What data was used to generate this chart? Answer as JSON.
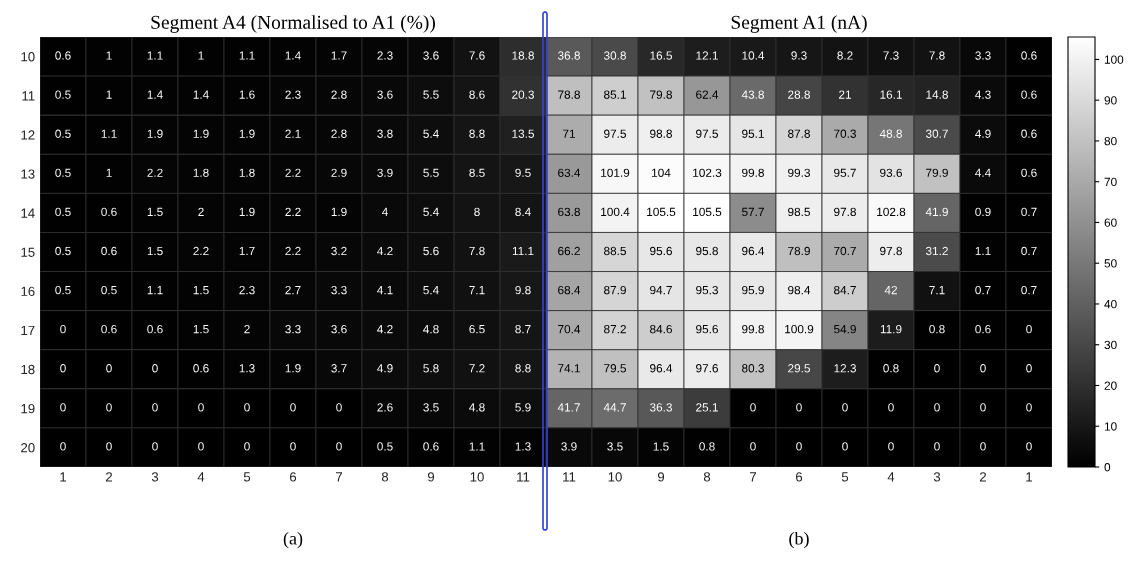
{
  "chart_data": [
    {
      "type": "heatmap",
      "title": "Segment A4 (Normalised to A1 (%))",
      "annotations": [
        "(a)"
      ],
      "categories": [
        "1",
        "2",
        "3",
        "4",
        "5",
        "6",
        "7",
        "8",
        "9",
        "10",
        "11"
      ],
      "y_categories": [
        "10",
        "11",
        "12",
        "13",
        "14",
        "15",
        "16",
        "17",
        "18",
        "19",
        "20"
      ],
      "cells": [
        [
          0.6,
          1,
          1.1,
          1,
          1.1,
          1.4,
          1.7,
          2.3,
          3.6,
          7.6,
          18.8
        ],
        [
          0.5,
          1,
          1.4,
          1.4,
          1.6,
          2.3,
          2.8,
          3.6,
          5.5,
          8.6,
          20.3
        ],
        [
          0.5,
          1.1,
          1.9,
          1.9,
          1.9,
          2.1,
          2.8,
          3.8,
          5.4,
          8.8,
          13.5
        ],
        [
          0.5,
          1,
          2.2,
          1.8,
          1.8,
          2.2,
          2.9,
          3.9,
          5.5,
          8.5,
          9.5
        ],
        [
          0.5,
          0.6,
          1.5,
          2,
          1.9,
          2.2,
          1.9,
          4,
          5.4,
          8,
          8.4
        ],
        [
          0.5,
          0.6,
          1.5,
          2.2,
          1.7,
          2.2,
          3.2,
          4.2,
          5.6,
          7.8,
          11.1
        ],
        [
          0.5,
          0.5,
          1.1,
          1.5,
          2.3,
          2.7,
          3.3,
          4.1,
          5.4,
          7.1,
          9.8
        ],
        [
          0,
          0.6,
          0.6,
          1.5,
          2,
          3.3,
          3.6,
          4.2,
          4.8,
          6.5,
          8.7
        ],
        [
          0,
          0,
          0,
          0.6,
          1.3,
          1.9,
          3.7,
          4.9,
          5.8,
          7.2,
          8.8
        ],
        [
          0,
          0,
          0,
          0,
          0,
          0,
          0,
          2.6,
          3.5,
          4.8,
          5.9
        ],
        [
          0,
          0,
          0,
          0,
          0,
          0,
          0,
          0.5,
          0.6,
          1.1,
          1.3
        ]
      ],
      "data_labels": true
    },
    {
      "type": "heatmap",
      "title": "Segment A1 (nA)",
      "annotations": [
        "(b)"
      ],
      "categories": [
        "11",
        "10",
        "9",
        "8",
        "7",
        "6",
        "5",
        "4",
        "3",
        "2",
        "1"
      ],
      "y_categories": [
        "10",
        "11",
        "12",
        "13",
        "14",
        "15",
        "16",
        "17",
        "18",
        "19",
        "20"
      ],
      "cells": [
        [
          36.8,
          30.8,
          16.5,
          12.1,
          10.4,
          9.3,
          8.2,
          7.3,
          7.8,
          3.3,
          0.6
        ],
        [
          78.8,
          85.1,
          79.8,
          62.4,
          43.8,
          28.8,
          21,
          16.1,
          14.8,
          4.3,
          0.6
        ],
        [
          71,
          97.5,
          98.8,
          97.5,
          95.1,
          87.8,
          70.3,
          48.8,
          30.7,
          4.9,
          0.6
        ],
        [
          63.4,
          101.9,
          104,
          102.3,
          99.8,
          99.3,
          95.7,
          93.6,
          79.9,
          4.4,
          0.6
        ],
        [
          63.8,
          100.4,
          105.5,
          105.5,
          57.7,
          98.5,
          97.8,
          102.8,
          41.9,
          0.9,
          0.7
        ],
        [
          66.2,
          88.5,
          95.6,
          95.8,
          96.4,
          78.9,
          70.7,
          97.8,
          31.2,
          1.1,
          0.7
        ],
        [
          68.4,
          87.9,
          94.7,
          95.3,
          95.9,
          98.4,
          84.7,
          42,
          7.1,
          0.7,
          0.7
        ],
        [
          70.4,
          87.2,
          84.6,
          95.6,
          99.8,
          100.9,
          54.9,
          11.9,
          0.8,
          0.6,
          0
        ],
        [
          74.1,
          79.5,
          96.4,
          97.6,
          80.3,
          29.5,
          12.3,
          0.8,
          0,
          0,
          0
        ],
        [
          41.7,
          44.7,
          36.3,
          25.1,
          0,
          0,
          0,
          0,
          0,
          0,
          0
        ],
        [
          3.9,
          3.5,
          1.5,
          0.8,
          0,
          0,
          0,
          0,
          0,
          0,
          0
        ]
      ],
      "clim": [
        0,
        105.5
      ],
      "cticks": [
        0,
        10,
        20,
        30,
        40,
        50,
        60,
        70,
        80,
        90,
        100
      ],
      "data_labels": true,
      "tick_labels": "x"
    }
  ]
}
